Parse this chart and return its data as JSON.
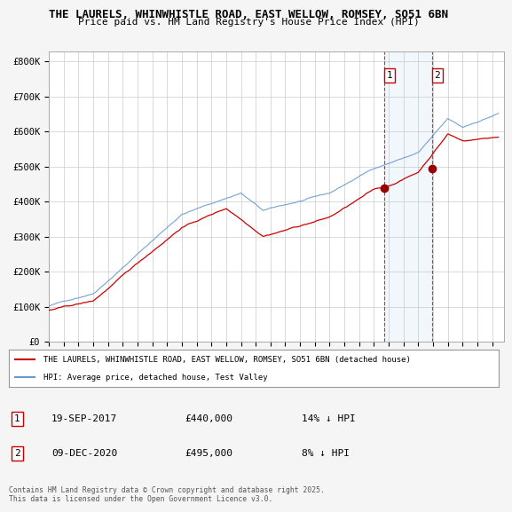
{
  "title_line1": "THE LAURELS, WHINWHISTLE ROAD, EAST WELLOW, ROMSEY, SO51 6BN",
  "title_line2": "Price paid vs. HM Land Registry's House Price Index (HPI)",
  "ylabel_ticks": [
    "£0",
    "£100K",
    "£200K",
    "£300K",
    "£400K",
    "£500K",
    "£600K",
    "£700K",
    "£800K"
  ],
  "ytick_values": [
    0,
    100000,
    200000,
    300000,
    400000,
    500000,
    600000,
    700000,
    800000
  ],
  "ylim": [
    0,
    830000
  ],
  "xlim_start": 1995.0,
  "xlim_end": 2025.8,
  "background_color": "#f5f5f5",
  "plot_background": "#ffffff",
  "red_color": "#cc0000",
  "blue_color": "#6699cc",
  "marker_dot_color": "#990000",
  "grid_color": "#cccccc",
  "marker1_date_x": 2017.72,
  "marker1_price": 440000,
  "marker2_date_x": 2020.94,
  "marker2_price": 495000,
  "legend_label1": "THE LAURELS, WHINWHISTLE ROAD, EAST WELLOW, ROMSEY, SO51 6BN (detached house)",
  "legend_label2": "HPI: Average price, detached house, Test Valley",
  "annotation1_date": "19-SEP-2017",
  "annotation1_price": "£440,000",
  "annotation1_pct": "14% ↓ HPI",
  "annotation2_date": "09-DEC-2020",
  "annotation2_price": "£495,000",
  "annotation2_pct": "8% ↓ HPI",
  "footer": "Contains HM Land Registry data © Crown copyright and database right 2025.\nThis data is licensed under the Open Government Licence v3.0."
}
